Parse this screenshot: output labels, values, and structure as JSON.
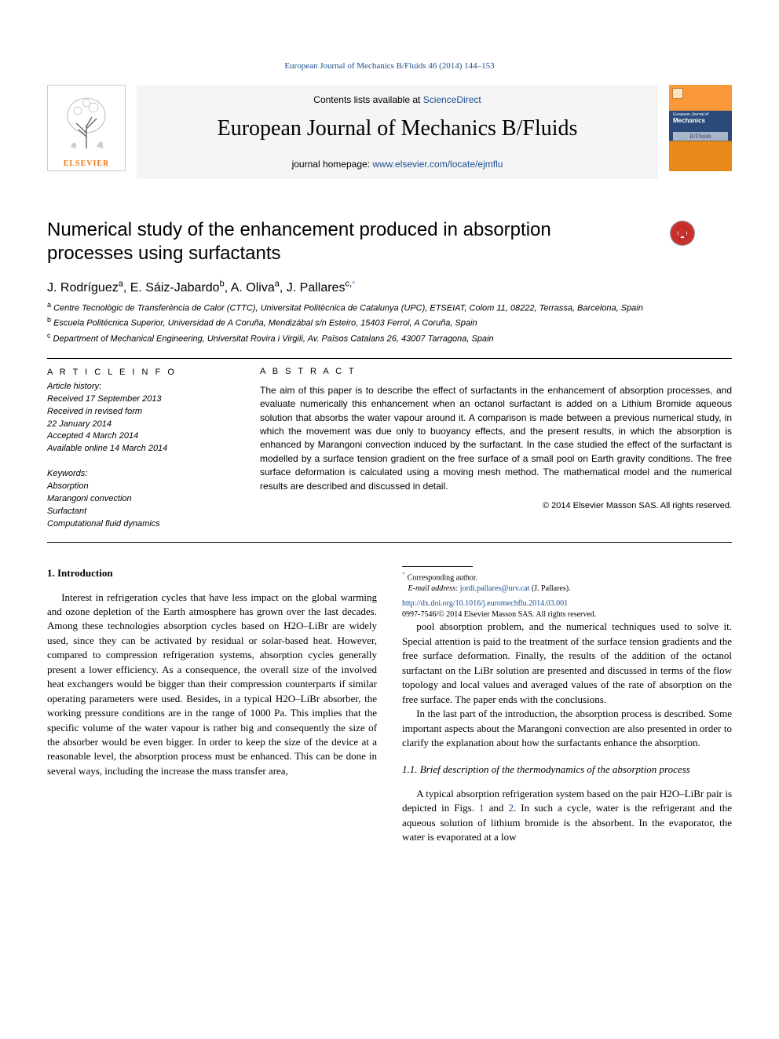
{
  "running_head": "European Journal of Mechanics B/Fluids 46 (2014) 144–153",
  "header": {
    "contents_prefix": "Contents lists available at ",
    "contents_link": "ScienceDirect",
    "journal_title": "European Journal of Mechanics B/Fluids",
    "homepage_prefix": "journal homepage: ",
    "homepage_link": "www.elsevier.com/locate/ejmflu",
    "elsevier_label": "ELSEVIER",
    "cover": {
      "line1": "European Journal of",
      "line2": "Mechanics",
      "bfluids": "B/Fluids"
    }
  },
  "title": "Numerical study of the enhancement produced in absorption processes using surfactants",
  "authors_html": "J. Rodríguez<sup>a</sup>, E. Sáiz-Jabardo<sup>b</sup>, A. Oliva<sup>a</sup>, J. Pallares<sup>c,</sup>",
  "corr_marker": "*",
  "affiliations": [
    {
      "sup": "a",
      "text": "Centre Tecnològic de Transferència de Calor (CTTC), Universitat Politècnica de Catalunya (UPC), ETSEIAT, Colom 11, 08222, Terrassa, Barcelona, Spain"
    },
    {
      "sup": "b",
      "text": "Escuela Politécnica Superior, Universidad de A Coruña, Mendizábal s/n Esteiro, 15403 Ferrol, A Coruña, Spain"
    },
    {
      "sup": "c",
      "text": "Department of Mechanical Engineering, Universitat Rovira i Virgili, Av. Països Catalans 26, 43007 Tarragona, Spain"
    }
  ],
  "article_info": {
    "head": "A R T I C L E   I N F O",
    "history_label": "Article history:",
    "received": "Received 17 September 2013",
    "revised": "Received in revised form",
    "revised_date": "22 January 2014",
    "accepted": "Accepted 4 March 2014",
    "online": "Available online 14 March 2014",
    "keywords_label": "Keywords:",
    "keywords": [
      "Absorption",
      "Marangoni convection",
      "Surfactant",
      "Computational fluid dynamics"
    ]
  },
  "abstract": {
    "head": "A B S T R A C T",
    "text": "The aim of this paper is to describe the effect of surfactants in the enhancement of absorption processes, and evaluate numerically this enhancement when an octanol surfactant is added on a Lithium Bromide aqueous solution that absorbs the water vapour around it. A comparison is made between a previous numerical study, in which the movement was due only to buoyancy effects, and the present results, in which the absorption is enhanced by Marangoni convection induced by the surfactant. In the case studied the effect of the surfactant is modelled by a surface tension gradient on the free surface of a small pool on Earth gravity conditions. The free surface deformation is calculated using a moving mesh method. The mathematical model and the numerical results are described and discussed in detail.",
    "copyright": "© 2014 Elsevier Masson SAS. All rights reserved."
  },
  "section1": {
    "head": "1. Introduction",
    "paragraphs": [
      "Interest in refrigeration cycles that have less impact on the global warming and ozone depletion of the Earth atmosphere has grown over the last decades. Among these technologies absorption cycles based on H2O–LiBr are widely used, since they can be activated by residual or solar-based heat. However, compared to compression refrigeration systems, absorption cycles generally present a lower efficiency. As a consequence, the overall size of the involved heat exchangers would be bigger than their compression counterparts if similar operating parameters were used. Besides, in a typical H2O–LiBr absorber, the working pressure conditions are in the range of 1000 Pa. This implies that the specific volume of the water vapour is rather big and consequently the size of the absorber would be even bigger. In order to keep the size of the device at a reasonable level, the absorption process must be enhanced. This can be done in several ways, including the increase the mass transfer area,",
      "pool absorption problem, and the numerical techniques used to solve it. Special attention is paid to the treatment of the surface tension gradients and the free surface deformation. Finally, the results of the addition of the octanol surfactant on the LiBr solution are presented and discussed in terms of the flow topology and local values and averaged values of the rate of absorption on the free surface. The paper ends with the conclusions.",
      "In the last part of the introduction, the absorption process is described. Some important aspects about the Marangoni convection are also presented in order to clarify the explanation about how the surfactants enhance the absorption."
    ]
  },
  "section11": {
    "head": "1.1. Brief description of the thermodynamics of the absorption process",
    "paragraphs": [
      "A typical absorption refrigeration system based on the pair H2O–LiBr pair is depicted in Figs. 1 and 2. In such a cycle, water is the refrigerant and the aqueous solution of lithium bromide is the absorbent. In the evaporator, the water is evaporated at a low"
    ]
  },
  "citations": {
    "fig1": "1",
    "fig2": "2"
  },
  "footnote": {
    "corr_label": "Corresponding author.",
    "email_label": "E-mail address:",
    "email": "jordi.pallares@urv.cat",
    "email_name": "(J. Pallares)."
  },
  "doi": {
    "link": "http://dx.doi.org/10.1016/j.euromechflu.2014.03.001",
    "issn_line": "0997-7546/© 2014 Elsevier Masson SAS. All rights reserved."
  },
  "colors": {
    "link": "#1a4d8f",
    "elsevier_orange": "#e67817",
    "crossmark_red": "#c9302c"
  }
}
